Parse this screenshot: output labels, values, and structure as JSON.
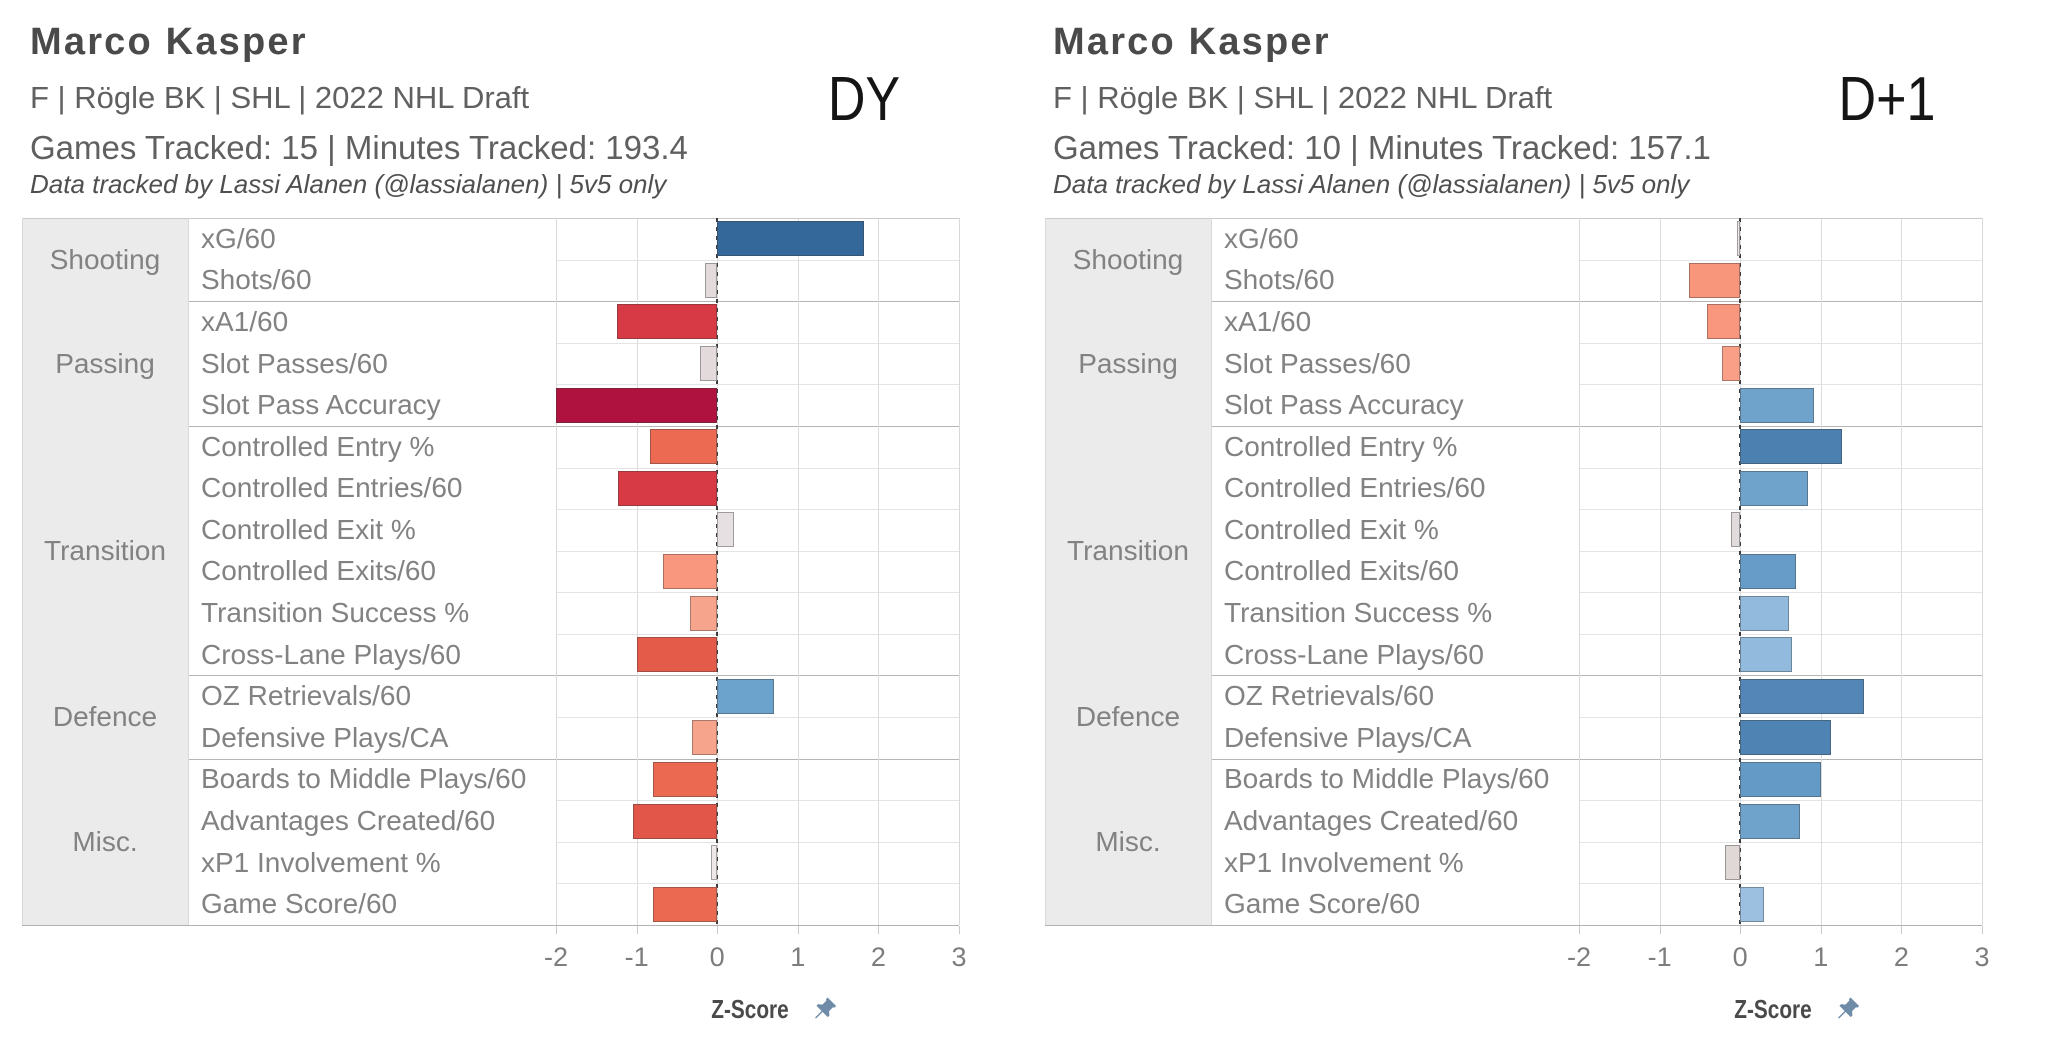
{
  "chart_data": {
    "type": "bar",
    "orientation": "horizontal",
    "title": "Marco Kasper",
    "xlabel": "Z-Score",
    "xlim": [
      -2,
      3
    ],
    "xticks": [
      "-2",
      "-1",
      "0",
      "1",
      "2",
      "3"
    ],
    "grid": true,
    "zero_reference_line": "dashed",
    "categories": [
      "xG/60",
      "Shots/60",
      "xA1/60",
      "Slot Passes/60",
      "Slot Pass Accuracy",
      "Controlled Entry %",
      "Controlled Entries/60",
      "Controlled Exit %",
      "Controlled Exits/60",
      "Transition Success %",
      "Cross-Lane Plays/60",
      "OZ Retrievals/60",
      "Defensive Plays/CA",
      "Boards to Middle Plays/60",
      "Advantages Created/60",
      "xP1 Involvement %",
      "Game Score/60"
    ],
    "category_groups": [
      {
        "label": "Shooting",
        "span": 2
      },
      {
        "label": "Passing",
        "span": 3
      },
      {
        "label": "Transition",
        "span": 6
      },
      {
        "label": "Defence",
        "span": 2
      },
      {
        "label": "Misc.",
        "span": 4
      }
    ],
    "panels": [
      {
        "title": "Marco Kasper",
        "subtitle": "F | Rögle BK | SHL | 2022 NHL Draft",
        "tracked": "Games Tracked: 15 | Minutes Tracked: 193.4",
        "credit": "Data tracked by Lassi Alanen (@lassialanen) | 5v5 only",
        "season_tag": "DY",
        "xlabel": "Z-Score",
        "values": [
          1.82,
          -0.15,
          -1.24,
          -0.21,
          -2.0,
          -0.83,
          -1.23,
          0.21,
          -0.67,
          -0.34,
          -1.0,
          0.7,
          -0.31,
          -0.8,
          -1.04,
          -0.08,
          -0.8
        ],
        "colors": [
          "#34689a",
          "#e2dadb",
          "#d73a44",
          "#e2dadb",
          "#b0123f",
          "#ed6a52",
          "#d73a44",
          "#e7e0e2",
          "#f8977e",
          "#f6a48c",
          "#e45b4a",
          "#6ba3cc",
          "#f6a48c",
          "#ec6951",
          "#e2564a",
          "#efe8e9",
          "#ec6951"
        ]
      },
      {
        "title": "Marco Kasper",
        "subtitle": "F | Rögle BK | SHL | 2022 NHL Draft",
        "tracked": "Games Tracked: 10 | Minutes Tracked: 157.1",
        "credit": "Data tracked by Lassi Alanen (@lassialanen) | 5v5 only",
        "season_tag": "D+1",
        "xlabel": "Z-Score",
        "values": [
          -0.04,
          -0.64,
          -0.41,
          -0.23,
          0.91,
          1.26,
          0.84,
          -0.11,
          0.69,
          0.61,
          0.64,
          1.54,
          1.13,
          1.0,
          0.74,
          -0.19,
          0.29
        ],
        "colors": [
          "#ece4e5",
          "#f8967c",
          "#f8977e",
          "#f99f87",
          "#70a3cc",
          "#4b80b1",
          "#6fa3cc",
          "#e2dbdc",
          "#679cc8",
          "#92badd",
          "#92badd",
          "#5487b7",
          "#4f83b3",
          "#649ac6",
          "#6fa3cc",
          "#e0d8d6",
          "#9cc0e0"
        ]
      }
    ],
    "accent_colors": {
      "negative_strong": "#b0123f",
      "negative": "#d73a44",
      "neutral": "#e2dadb",
      "positive": "#6ba3cc",
      "positive_strong": "#34689a",
      "pin_icon": "#6e8ca8"
    }
  }
}
